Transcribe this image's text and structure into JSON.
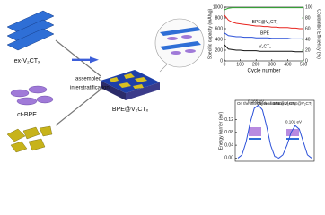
{
  "diagram": {
    "labels": [
      "ex-V₂CTₓ",
      "ct-BPE",
      "assembled",
      "interstratification",
      "BPE@V₂CTₓ"
    ]
  },
  "chart_data": [
    {
      "type": "line",
      "x_label": "Cycle number",
      "y_label": "Specific capacity (mAh/g)",
      "y2_label": "Coulombic Efficiency (%)",
      "x": [
        0,
        25,
        50,
        75,
        100,
        125,
        150,
        175,
        200,
        225,
        250,
        275,
        300,
        325,
        350,
        375,
        400,
        425,
        450,
        475,
        500
      ],
      "series": [
        {
          "name": "BPE@V₂CTₓ",
          "color": "#e8251f",
          "values": [
            850,
            760,
            720,
            700,
            690,
            680,
            670,
            660,
            650,
            650,
            640,
            640,
            630,
            630,
            620,
            620,
            620,
            610,
            610,
            600,
            600
          ]
        },
        {
          "name": "BPE",
          "color": "#2b50d8",
          "values": [
            520,
            470,
            460,
            450,
            450,
            440,
            440,
            440,
            430,
            430,
            430,
            430,
            420,
            420,
            420,
            420,
            420,
            410,
            410,
            410,
            410
          ]
        },
        {
          "name": "V₂CTₓ",
          "color": "#111111",
          "values": [
            300,
            220,
            210,
            200,
            200,
            190,
            190,
            190,
            190,
            180,
            180,
            180,
            180,
            180,
            180,
            180,
            180,
            180,
            170,
            170,
            170
          ]
        },
        {
          "name": "Coulombic Efficiency",
          "color": "#2fa52f",
          "axis": "y2",
          "values": [
            95,
            98,
            99,
            99,
            99,
            99,
            99,
            99,
            99,
            99,
            99,
            99,
            99,
            99,
            99,
            99,
            99,
            99,
            99,
            99,
            99
          ]
        }
      ],
      "xlim": [
        0,
        500
      ],
      "xticks": [
        0,
        100,
        200,
        300,
        400,
        500
      ],
      "ylim": [
        0,
        1000
      ],
      "yticks": [
        0,
        200,
        400,
        600,
        800,
        1000
      ],
      "y2lim": [
        0,
        100
      ],
      "y2ticks": [
        0,
        20,
        40,
        60,
        80,
        100
      ],
      "y2color": "#2fa52f"
    },
    {
      "type": "line",
      "y_label": "Energy barrier (eV)",
      "categories": [
        null,
        null,
        null,
        null,
        null,
        null,
        null,
        null,
        null,
        null,
        null,
        null,
        null,
        null,
        null,
        null,
        null,
        null,
        null
      ],
      "values": [
        0,
        0.01,
        0.05,
        0.11,
        0.155,
        0.165,
        0.15,
        0.1,
        0.04,
        0.005,
        0,
        0.01,
        0.04,
        0.08,
        0.101,
        0.09,
        0.05,
        0.01,
        0
      ],
      "color": "#2b50d8",
      "ylim": [
        -0.01,
        0.18
      ],
      "yticks": [
        {
          "value": 0,
          "label": "0.00"
        },
        {
          "value": 0.04,
          "label": "0.04"
        },
        {
          "value": 0.08,
          "label": "0.08"
        },
        {
          "value": 0.12,
          "label": "0.12"
        }
      ],
      "annotations": [
        "On the interlayer of BPE@V₂CTₓ",
        "0.165 eV",
        "On the surface of BPE@V₂CTₓ",
        "0.101 eV"
      ]
    }
  ]
}
